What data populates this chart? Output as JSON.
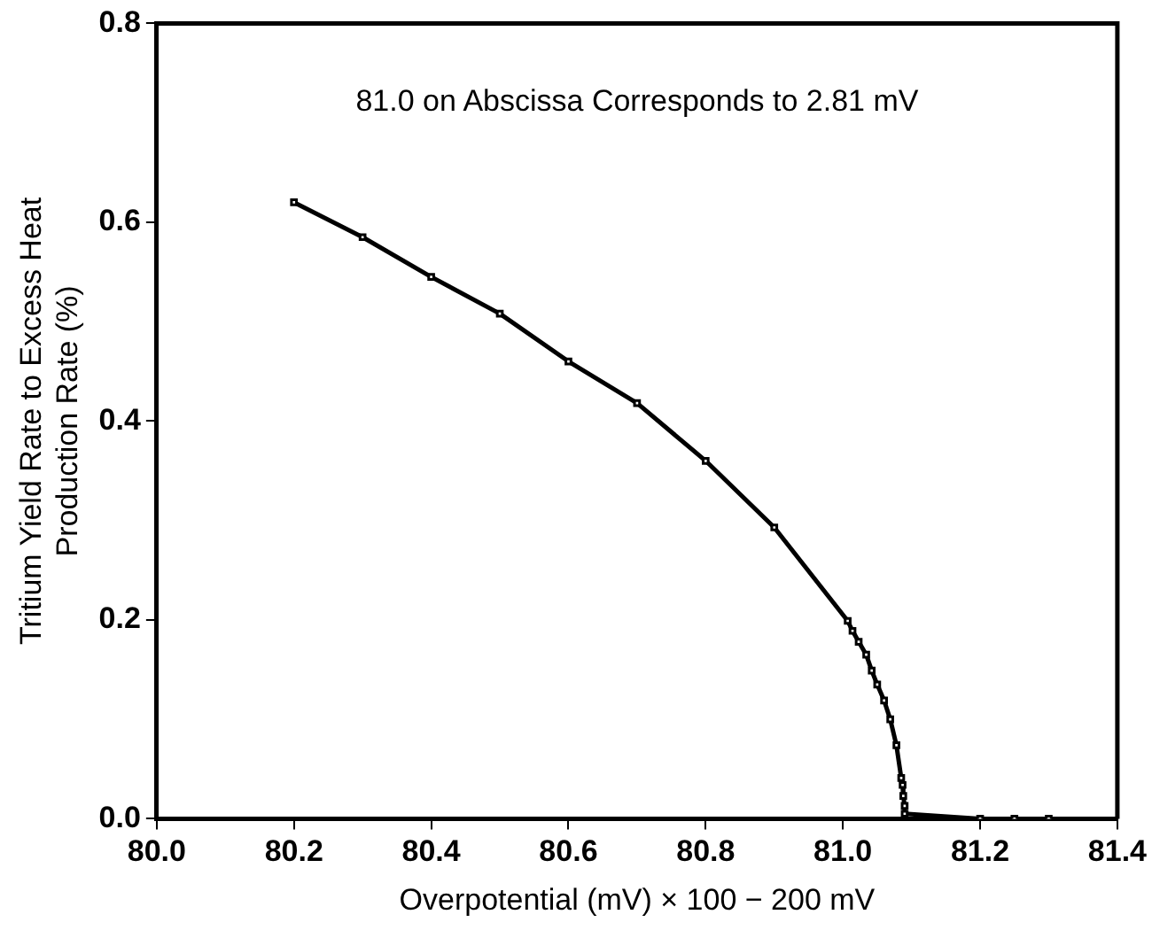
{
  "chart_data": {
    "type": "line",
    "xlabel": "Overpotential (mV) × 100 − 200 mV",
    "ylabel": "Tritium Yield Rate to Excess Heat\nProduction Rate (%)",
    "annotations": [
      "81.0 on Abscissa Corresponds to 2.81 mV"
    ],
    "series": [
      {
        "color": "#000000",
        "x": [
          80.2,
          80.3,
          80.4,
          80.5,
          80.6,
          80.7,
          80.8,
          80.9,
          81.007,
          81.014,
          81.023,
          81.034,
          81.042,
          81.05,
          81.06,
          81.069,
          81.078,
          81.085,
          81.087,
          81.088,
          81.09,
          81.09,
          81.2,
          81.25,
          81.3
        ],
        "values": [
          0.62,
          0.585,
          0.545,
          0.508,
          0.46,
          0.418,
          0.36,
          0.293,
          0.199,
          0.189,
          0.178,
          0.165,
          0.149,
          0.135,
          0.119,
          0.1,
          0.074,
          0.041,
          0.034,
          0.023,
          0.013,
          0.005,
          0,
          0,
          0
        ]
      }
    ],
    "xlim": [
      80.0,
      81.4
    ],
    "xticks": [
      {
        "value": 80.0,
        "label": "80.0"
      },
      {
        "value": 80.2,
        "label": "80.2"
      },
      {
        "value": 80.4,
        "label": "80.4"
      },
      {
        "value": 80.6,
        "label": "80.6"
      },
      {
        "value": 80.8,
        "label": "80.8"
      },
      {
        "value": 81.0,
        "label": "81.0"
      },
      {
        "value": 81.2,
        "label": "81.2"
      },
      {
        "value": 81.4,
        "label": "81.4"
      }
    ],
    "ylim": [
      0,
      0.8
    ],
    "yticks": [
      {
        "value": 0,
        "label": "0.0"
      },
      {
        "value": 0.2,
        "label": "0.2"
      },
      {
        "value": 0.4,
        "label": "0.4"
      },
      {
        "value": 0.6,
        "label": "0.6"
      },
      {
        "value": 0.8,
        "label": "0.8"
      }
    ],
    "grid": false,
    "legend": false,
    "marker": "square",
    "line_style": "solid"
  }
}
